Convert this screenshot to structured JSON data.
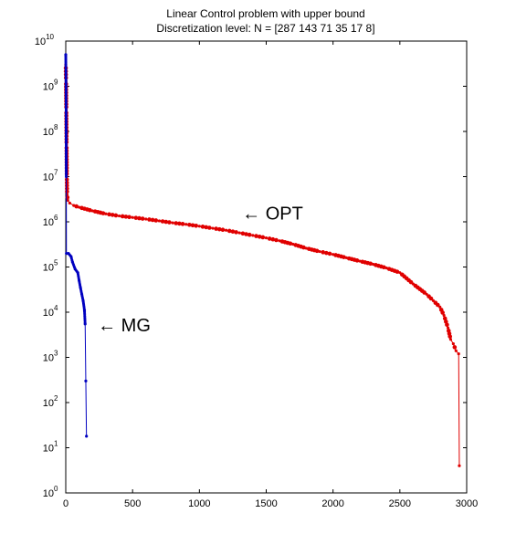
{
  "chart_data": {
    "type": "line",
    "title": "Linear Control problem with upper bound",
    "subtitle": "Discretization level: N = [287 143 71 35 17 8]",
    "xlabel": "",
    "ylabel": "",
    "xlim": [
      0,
      3000
    ],
    "ylim_exponent": [
      0,
      10
    ],
    "y_scale": "log",
    "grid": false,
    "x_ticks": [
      {
        "value": 0,
        "label": "0"
      },
      {
        "value": 500,
        "label": "500"
      },
      {
        "value": 1000,
        "label": "1000"
      },
      {
        "value": 1500,
        "label": "1500"
      },
      {
        "value": 2000,
        "label": "2000"
      },
      {
        "value": 2500,
        "label": "2500"
      },
      {
        "value": 3000,
        "label": "3000"
      }
    ],
    "y_ticks": [
      {
        "exp": 0,
        "base": "10",
        "power": "0"
      },
      {
        "exp": 1,
        "base": "10",
        "power": "1"
      },
      {
        "exp": 2,
        "base": "10",
        "power": "2"
      },
      {
        "exp": 3,
        "base": "10",
        "power": "3"
      },
      {
        "exp": 4,
        "base": "10",
        "power": "4"
      },
      {
        "exp": 5,
        "base": "10",
        "power": "5"
      },
      {
        "exp": 6,
        "base": "10",
        "power": "6"
      },
      {
        "exp": 7,
        "base": "10",
        "power": "7"
      },
      {
        "exp": 8,
        "base": "10",
        "power": "8"
      },
      {
        "exp": 9,
        "base": "10",
        "power": "9"
      },
      {
        "exp": 10,
        "base": "10",
        "power": "10"
      }
    ],
    "series": [
      {
        "name": "OPT",
        "color": "#e00000",
        "points": [
          [
            0,
            3000000000.0
          ],
          [
            2,
            1300000000.0
          ],
          [
            4,
            300000000.0
          ],
          [
            6,
            50000000.0
          ],
          [
            8,
            10000000.0
          ],
          [
            10,
            4000000.0
          ],
          [
            15,
            3000000.0
          ],
          [
            30,
            2600000.0
          ],
          [
            60,
            2300000.0
          ],
          [
            100,
            2100000.0
          ],
          [
            200,
            1750000.0
          ],
          [
            300,
            1500000.0
          ],
          [
            400,
            1350000.0
          ],
          [
            500,
            1250000.0
          ],
          [
            600,
            1150000.0
          ],
          [
            700,
            1050000.0
          ],
          [
            800,
            950000.0
          ],
          [
            900,
            880000.0
          ],
          [
            1000,
            800000.0
          ],
          [
            1100,
            720000.0
          ],
          [
            1200,
            650000.0
          ],
          [
            1300,
            570000.0
          ],
          [
            1400,
            500000.0
          ],
          [
            1500,
            440000.0
          ],
          [
            1600,
            380000.0
          ],
          [
            1700,
            320000.0
          ],
          [
            1800,
            260000.0
          ],
          [
            1900,
            220000.0
          ],
          [
            2000,
            190000.0
          ],
          [
            2100,
            160000.0
          ],
          [
            2200,
            135000.0
          ],
          [
            2300,
            115000.0
          ],
          [
            2400,
            95000.0
          ],
          [
            2500,
            75000.0
          ],
          [
            2600,
            42000.0
          ],
          [
            2700,
            25000.0
          ],
          [
            2750,
            18000.0
          ],
          [
            2800,
            13000.0
          ],
          [
            2830,
            8500.0
          ],
          [
            2860,
            4500.0
          ],
          [
            2880,
            2500.0
          ],
          [
            2900,
            2000.0
          ],
          [
            2920,
            1400.0
          ],
          [
            2940,
            1200.0
          ],
          [
            2945,
            4.0
          ]
        ]
      },
      {
        "name": "MG",
        "color": "#0000c0",
        "points": [
          [
            0,
            5000000000.0
          ],
          [
            2,
            1000000000.0
          ],
          [
            3,
            100000000.0
          ],
          [
            4,
            10000000.0
          ],
          [
            5,
            200000.0
          ],
          [
            20,
            200000.0
          ],
          [
            40,
            170000.0
          ],
          [
            50,
            130000.0
          ],
          [
            70,
            90000.0
          ],
          [
            90,
            75000.0
          ],
          [
            100,
            50000.0
          ],
          [
            110,
            35000.0
          ],
          [
            120,
            25000.0
          ],
          [
            130,
            18000.0
          ],
          [
            140,
            11000.0
          ],
          [
            145,
            5500.0
          ],
          [
            150,
            300.0
          ],
          [
            155,
            18.0
          ]
        ]
      }
    ],
    "annotations": [
      {
        "text": "← OPT",
        "x": 1320,
        "y": 1500000.0
      },
      {
        "text": "← MG",
        "x": 240,
        "y": 5000.0
      }
    ]
  }
}
